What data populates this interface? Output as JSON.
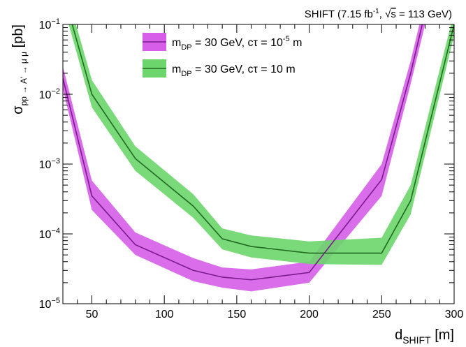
{
  "chart_data": {
    "type": "line",
    "annotation": {
      "prefix": "SHIFT (7.15 fb",
      "sup": "-1",
      "middle": ", ",
      "sqrt_s": "s",
      "suffix": " = 113 GeV)"
    },
    "xlabel": {
      "main": "d",
      "sub": "SHIFT",
      "unit": " [m]"
    },
    "ylabel": {
      "main": "σ",
      "sub": "pp → A' → μ μ",
      "unit": " [pb]"
    },
    "xlim": [
      30,
      300
    ],
    "ylim": [
      1e-05,
      0.1
    ],
    "yscale": "log",
    "x_ticks": [
      50,
      100,
      150,
      200,
      250,
      300
    ],
    "y_ticks": [
      {
        "value": 1e-05,
        "base": "10",
        "exp": "−5"
      },
      {
        "value": 0.0001,
        "base": "10",
        "exp": "−4"
      },
      {
        "value": 0.001,
        "base": "10",
        "exp": "−3"
      },
      {
        "value": 0.01,
        "base": "10",
        "exp": "−2"
      },
      {
        "value": 0.1,
        "base": "10",
        "exp": "−1"
      }
    ],
    "legend_position": "top-left",
    "series": [
      {
        "legend": {
          "m": "m",
          "m_sub": "DP",
          "mid": " = 30 GeV, cτ = 10",
          "exp": "-5",
          "unit": " m"
        },
        "line_color": "#7a1a8c",
        "band_color": "#d65ee8",
        "x": [
          30,
          50,
          80,
          120,
          140,
          160,
          200,
          250,
          270,
          280
        ],
        "y": [
          0.017,
          0.00035,
          7e-05,
          3e-05,
          2.4e-05,
          2.2e-05,
          2.8e-05,
          0.0006,
          0.02,
          0.15
        ],
        "lo": [
          0.012,
          0.00022,
          5e-05,
          2.1e-05,
          1.7e-05,
          1.5e-05,
          2e-05,
          0.00035,
          0.014,
          0.1
        ],
        "hi": [
          0.025,
          0.00058,
          0.000105,
          4.5e-05,
          3.3e-05,
          3.1e-05,
          4e-05,
          0.001,
          0.03,
          0.22
        ]
      },
      {
        "legend": {
          "m": "m",
          "m_sub": "DP",
          "mid": " = 30 GeV, cτ = 10 m",
          "exp": "",
          "unit": ""
        },
        "line_color": "#1f6b1f",
        "band_color": "#6cd66c",
        "x": [
          30,
          50,
          80,
          120,
          140,
          160,
          200,
          250,
          270,
          300
        ],
        "y": [
          0.3,
          0.01,
          0.0012,
          0.00025,
          8.5e-05,
          6.6e-05,
          5.3e-05,
          5.3e-05,
          0.0003,
          0.1
        ],
        "lo": [
          0.2,
          0.0065,
          0.0008,
          0.00017,
          6e-05,
          4.6e-05,
          3.7e-05,
          3.6e-05,
          0.00019,
          0.07
        ],
        "hi": [
          0.45,
          0.016,
          0.0018,
          0.00037,
          0.00012,
          9.5e-05,
          7.8e-05,
          8.8e-05,
          0.0005,
          0.15
        ]
      }
    ]
  }
}
